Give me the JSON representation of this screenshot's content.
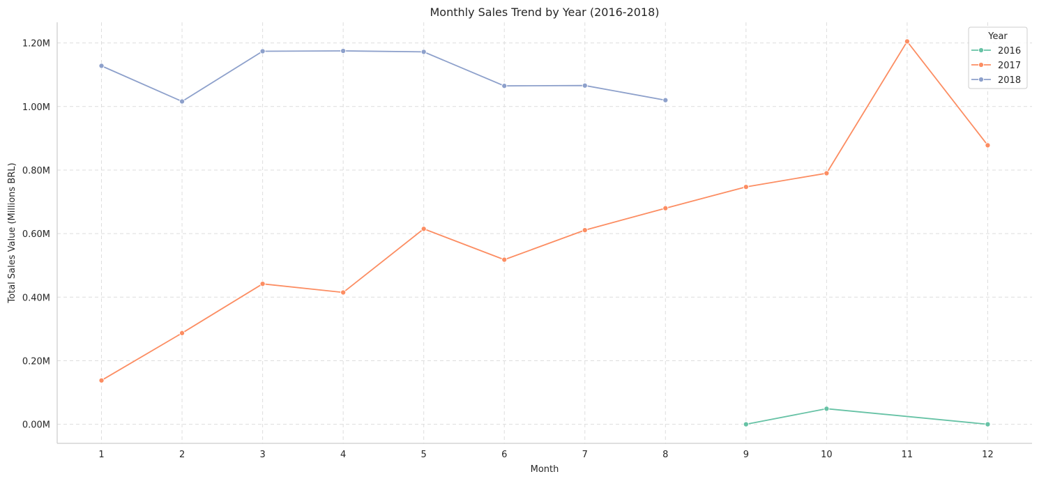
{
  "chart_data": {
    "type": "line",
    "title": "Monthly Sales Trend by Year (2016-2018)",
    "xlabel": "Month",
    "ylabel": "Total Sales Value (Millions BRL)",
    "x_ticks": [
      1,
      2,
      3,
      4,
      5,
      6,
      7,
      8,
      9,
      10,
      11,
      12
    ],
    "y_ticks": [
      "0.00M",
      "0.20M",
      "0.40M",
      "0.60M",
      "0.80M",
      "1.00M",
      "1.20M"
    ],
    "y_tick_values": [
      0,
      0.2,
      0.4,
      0.6,
      0.8,
      1.0,
      1.2
    ],
    "xlim": [
      0.45,
      12.55
    ],
    "ylim": [
      -0.06,
      1.265
    ],
    "grid": true,
    "legend": {
      "title": "Year",
      "position": "top-right"
    },
    "series": [
      {
        "name": "2016",
        "color": "#66c2a5",
        "points": [
          {
            "x": 9,
            "y": 0.0
          },
          {
            "x": 10,
            "y": 0.049
          },
          {
            "x": 12,
            "y": 0.0
          }
        ]
      },
      {
        "name": "2017",
        "color": "#fc8d62",
        "points": [
          {
            "x": 1,
            "y": 0.138
          },
          {
            "x": 2,
            "y": 0.287
          },
          {
            "x": 3,
            "y": 0.442
          },
          {
            "x": 4,
            "y": 0.415
          },
          {
            "x": 5,
            "y": 0.615
          },
          {
            "x": 6,
            "y": 0.518
          },
          {
            "x": 7,
            "y": 0.611
          },
          {
            "x": 8,
            "y": 0.68
          },
          {
            "x": 9,
            "y": 0.747
          },
          {
            "x": 10,
            "y": 0.79
          },
          {
            "x": 11,
            "y": 1.205
          },
          {
            "x": 12,
            "y": 0.878
          }
        ]
      },
      {
        "name": "2018",
        "color": "#8da0cb",
        "points": [
          {
            "x": 1,
            "y": 1.128
          },
          {
            "x": 2,
            "y": 1.016
          },
          {
            "x": 3,
            "y": 1.174
          },
          {
            "x": 4,
            "y": 1.175
          },
          {
            "x": 5,
            "y": 1.172
          },
          {
            "x": 6,
            "y": 1.065
          },
          {
            "x": 7,
            "y": 1.066
          },
          {
            "x": 8,
            "y": 1.02
          }
        ]
      }
    ]
  }
}
